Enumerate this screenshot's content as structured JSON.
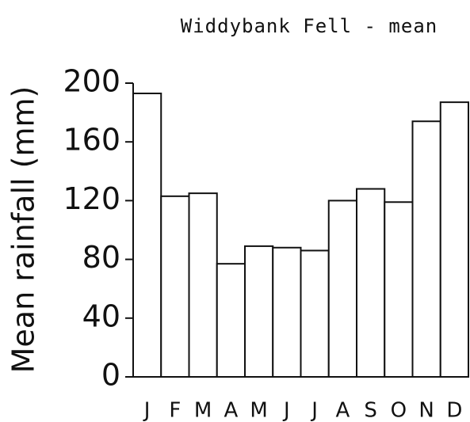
{
  "chart_data": {
    "type": "bar",
    "title": "Widdybank Fell - mean",
    "y_label": "Mean rainfall (mm)",
    "categories": [
      "J",
      "F",
      "M",
      "A",
      "M",
      "J",
      "J",
      "A",
      "S",
      "O",
      "N",
      "D"
    ],
    "values": [
      193,
      123,
      125,
      77,
      89,
      88,
      86,
      120,
      128,
      119,
      174,
      187
    ],
    "color": "#ffffff",
    "ylim": [
      0,
      200
    ],
    "yticks": [
      0,
      40,
      80,
      120,
      160,
      200
    ],
    "grid": false
  }
}
